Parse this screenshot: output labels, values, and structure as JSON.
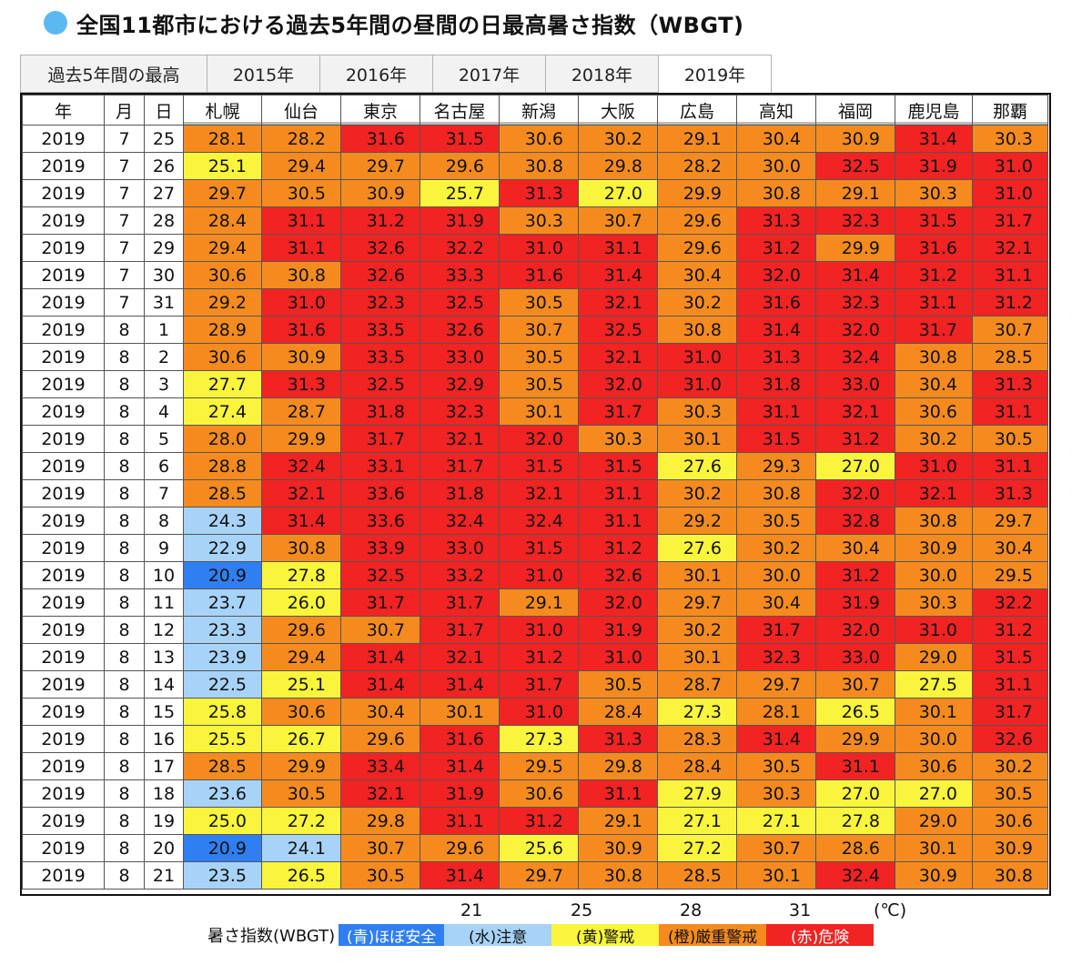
{
  "title": "全国11都市における過去5年間の昼間の日最高暑さ指数（WBGT)",
  "tabs": [
    {
      "label": "過去5年間の最高",
      "interactive": false
    },
    {
      "label": "2015年",
      "interactive": true
    },
    {
      "label": "2016年",
      "interactive": true
    },
    {
      "label": "2017年",
      "interactive": true
    },
    {
      "label": "2018年",
      "interactive": true
    },
    {
      "label": "2019年",
      "interactive": true,
      "active": true
    }
  ],
  "table": {
    "headers": [
      "年",
      "月",
      "日",
      "札幌",
      "仙台",
      "東京",
      "名古屋",
      "新潟",
      "大阪",
      "広島",
      "高知",
      "福岡",
      "鹿児島",
      "那覇"
    ],
    "rows": [
      [
        "2019",
        "7",
        "25",
        "28.1",
        "28.2",
        "31.6",
        "31.5",
        "30.6",
        "30.2",
        "29.1",
        "30.4",
        "30.9",
        "31.4",
        "30.3"
      ],
      [
        "2019",
        "7",
        "26",
        "25.1",
        "29.4",
        "29.7",
        "29.6",
        "30.8",
        "29.8",
        "28.2",
        "30.0",
        "32.5",
        "31.9",
        "31.0"
      ],
      [
        "2019",
        "7",
        "27",
        "29.7",
        "30.5",
        "30.9",
        "25.7",
        "31.3",
        "27.0",
        "29.9",
        "30.8",
        "29.1",
        "30.3",
        "31.0"
      ],
      [
        "2019",
        "7",
        "28",
        "28.4",
        "31.1",
        "31.2",
        "31.9",
        "30.3",
        "30.7",
        "29.6",
        "31.3",
        "32.3",
        "31.5",
        "31.7"
      ],
      [
        "2019",
        "7",
        "29",
        "29.4",
        "31.1",
        "32.6",
        "32.2",
        "31.0",
        "31.1",
        "29.6",
        "31.2",
        "29.9",
        "31.6",
        "32.1"
      ],
      [
        "2019",
        "7",
        "30",
        "30.6",
        "30.8",
        "32.6",
        "33.3",
        "31.6",
        "31.4",
        "30.4",
        "32.0",
        "31.4",
        "31.2",
        "31.1"
      ],
      [
        "2019",
        "7",
        "31",
        "29.2",
        "31.0",
        "32.3",
        "32.5",
        "30.5",
        "32.1",
        "30.2",
        "31.6",
        "32.3",
        "31.1",
        "31.2"
      ],
      [
        "2019",
        "8",
        "1",
        "28.9",
        "31.6",
        "33.5",
        "32.6",
        "30.7",
        "32.5",
        "30.8",
        "31.4",
        "32.0",
        "31.7",
        "30.7"
      ],
      [
        "2019",
        "8",
        "2",
        "30.6",
        "30.9",
        "33.5",
        "33.0",
        "30.5",
        "32.1",
        "31.0",
        "31.3",
        "32.4",
        "30.8",
        "28.5"
      ],
      [
        "2019",
        "8",
        "3",
        "27.7",
        "31.3",
        "32.5",
        "32.9",
        "30.5",
        "32.0",
        "31.0",
        "31.8",
        "33.0",
        "30.4",
        "31.3"
      ],
      [
        "2019",
        "8",
        "4",
        "27.4",
        "28.7",
        "31.8",
        "32.3",
        "30.1",
        "31.7",
        "30.3",
        "31.1",
        "32.1",
        "30.6",
        "31.1"
      ],
      [
        "2019",
        "8",
        "5",
        "28.0",
        "29.9",
        "31.7",
        "32.1",
        "32.0",
        "30.3",
        "30.1",
        "31.5",
        "31.2",
        "30.2",
        "30.5"
      ],
      [
        "2019",
        "8",
        "6",
        "28.8",
        "32.4",
        "33.1",
        "31.7",
        "31.5",
        "31.5",
        "27.6",
        "29.3",
        "27.0",
        "31.0",
        "31.1"
      ],
      [
        "2019",
        "8",
        "7",
        "28.5",
        "32.1",
        "33.6",
        "31.8",
        "32.1",
        "31.1",
        "30.2",
        "30.8",
        "32.0",
        "32.1",
        "31.3"
      ],
      [
        "2019",
        "8",
        "8",
        "24.3",
        "31.4",
        "33.6",
        "32.4",
        "32.4",
        "31.1",
        "29.2",
        "30.5",
        "32.8",
        "30.8",
        "29.7"
      ],
      [
        "2019",
        "8",
        "9",
        "22.9",
        "30.8",
        "33.9",
        "33.0",
        "31.5",
        "31.2",
        "27.6",
        "30.2",
        "30.4",
        "30.9",
        "30.4"
      ],
      [
        "2019",
        "8",
        "10",
        "20.9",
        "27.8",
        "32.5",
        "33.2",
        "31.0",
        "32.6",
        "30.1",
        "30.0",
        "31.2",
        "30.0",
        "29.5"
      ],
      [
        "2019",
        "8",
        "11",
        "23.7",
        "26.0",
        "31.7",
        "31.7",
        "29.1",
        "32.0",
        "29.7",
        "30.4",
        "31.9",
        "30.3",
        "32.2"
      ],
      [
        "2019",
        "8",
        "12",
        "23.3",
        "29.6",
        "30.7",
        "31.7",
        "31.0",
        "31.9",
        "30.2",
        "31.7",
        "32.0",
        "31.0",
        "31.2"
      ],
      [
        "2019",
        "8",
        "13",
        "23.9",
        "29.4",
        "31.4",
        "32.1",
        "31.2",
        "31.0",
        "30.1",
        "32.3",
        "33.0",
        "29.0",
        "31.5"
      ],
      [
        "2019",
        "8",
        "14",
        "22.5",
        "25.1",
        "31.4",
        "31.4",
        "31.7",
        "30.5",
        "28.7",
        "29.7",
        "30.7",
        "27.5",
        "31.1"
      ],
      [
        "2019",
        "8",
        "15",
        "25.8",
        "30.6",
        "30.4",
        "30.1",
        "31.0",
        "28.4",
        "27.3",
        "28.1",
        "26.5",
        "30.1",
        "31.7"
      ],
      [
        "2019",
        "8",
        "16",
        "25.5",
        "26.7",
        "29.6",
        "31.6",
        "27.3",
        "31.3",
        "28.3",
        "31.4",
        "29.9",
        "30.0",
        "32.6"
      ],
      [
        "2019",
        "8",
        "17",
        "28.5",
        "29.9",
        "33.4",
        "31.4",
        "29.5",
        "29.8",
        "28.4",
        "30.5",
        "31.1",
        "30.6",
        "30.2"
      ],
      [
        "2019",
        "8",
        "18",
        "23.6",
        "30.5",
        "32.1",
        "31.9",
        "30.6",
        "31.1",
        "27.9",
        "30.3",
        "27.0",
        "27.0",
        "30.5"
      ],
      [
        "2019",
        "8",
        "19",
        "25.0",
        "27.2",
        "29.8",
        "31.1",
        "31.2",
        "29.1",
        "27.1",
        "27.1",
        "27.8",
        "29.0",
        "30.6"
      ],
      [
        "2019",
        "8",
        "20",
        "20.9",
        "24.1",
        "30.7",
        "29.6",
        "25.6",
        "30.9",
        "27.2",
        "30.7",
        "28.6",
        "30.1",
        "30.9"
      ],
      [
        "2019",
        "8",
        "21",
        "23.5",
        "26.5",
        "30.5",
        "31.4",
        "29.7",
        "30.8",
        "28.5",
        "30.1",
        "32.4",
        "30.9",
        "30.8"
      ]
    ]
  },
  "legend": {
    "label": "暑さ指数(WBGT)",
    "thresholds": [
      "21",
      "25",
      "28",
      "31"
    ],
    "unit": "(℃)",
    "levels": [
      {
        "label": "(青)ほぼ安全",
        "color": "#2f7ff2"
      },
      {
        "label": "(水)注意",
        "color": "#a8d3f8"
      },
      {
        "label": "(黄)警戒",
        "color": "#f8f53c"
      },
      {
        "label": "(橙)厳重警戒",
        "color": "#f58b1f"
      },
      {
        "label": "(赤)危険",
        "color": "#f22323"
      }
    ]
  }
}
